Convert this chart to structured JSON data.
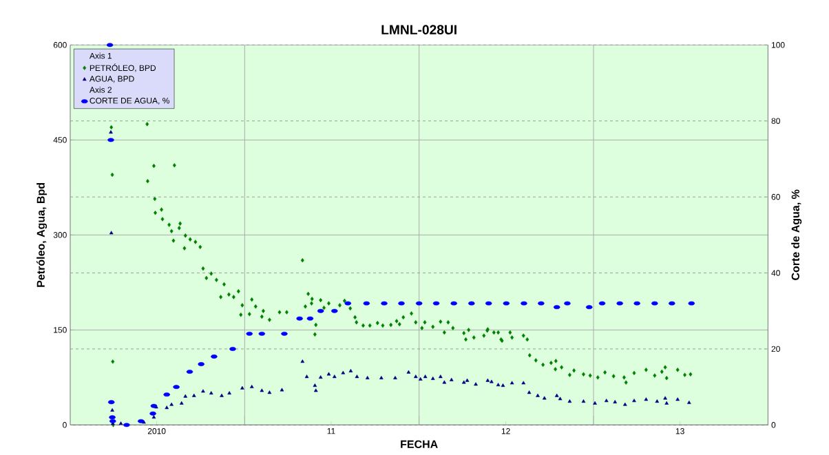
{
  "chart_data": {
    "type": "scatter",
    "title": "LMNL-028UI",
    "xlabel": "FECHA",
    "ylabel": "Petróleo, Agua, Bpd",
    "y2label": "Corte de Agua, %",
    "annotations": [
      "Axis 1",
      "Axis 2"
    ],
    "xlim": [
      "2010-01-01",
      "2014-01-01"
    ],
    "xticks": [
      {
        "value": "2010-07-01",
        "label": "2010"
      },
      {
        "value": "2011-01-01",
        "label": null
      },
      {
        "value": "2011-07-01",
        "label": "11"
      },
      {
        "value": "2012-01-01",
        "label": null
      },
      {
        "value": "2012-07-01",
        "label": "12"
      },
      {
        "value": "2013-01-01",
        "label": null
      },
      {
        "value": "2013-07-01",
        "label": "13"
      }
    ],
    "ylim": [
      0,
      600
    ],
    "yticks": [
      0,
      150,
      300,
      450,
      600
    ],
    "y2lim": [
      0,
      100
    ],
    "y2ticks": [
      0,
      20,
      40,
      60,
      80,
      100
    ],
    "grid": true,
    "legend": "top left",
    "series": [
      {
        "name": "PETRÓLEO, BPD",
        "color": "#008000",
        "marker": "diamond",
        "axis": "y",
        "x": [
          "2010-03-28",
          "2010-03-30",
          "2010-03-31",
          "2010-04-01",
          "2010-06-11",
          "2010-06-12",
          "2010-06-25",
          "2010-06-27",
          "2010-06-28",
          "2010-07-11",
          "2010-07-13",
          "2010-07-27",
          "2010-08-01",
          "2010-08-05",
          "2010-08-07",
          "2010-08-17",
          "2010-08-19",
          "2010-08-28",
          "2010-08-30",
          "2010-09-09",
          "2010-09-20",
          "2010-09-30",
          "2010-10-06",
          "2010-10-13",
          "2010-10-23",
          "2010-11-03",
          "2010-11-12",
          "2010-11-19",
          "2010-11-29",
          "2010-12-09",
          "2010-12-19",
          "2010-12-24",
          "2010-12-27",
          "2011-01-11",
          "2011-01-16",
          "2011-01-24",
          "2011-02-06",
          "2011-02-09",
          "2011-02-22",
          "2011-03-15",
          "2011-03-30",
          "2011-05-02",
          "2011-05-08",
          "2011-05-14",
          "2011-05-21",
          "2011-05-22",
          "2011-05-28",
          "2011-05-30",
          "2011-06-09",
          "2011-06-16",
          "2011-06-26",
          "2011-07-19",
          "2011-07-29",
          "2011-08-10",
          "2011-08-20",
          "2011-08-23",
          "2011-09-06",
          "2011-09-20",
          "2011-10-06",
          "2011-10-17",
          "2011-11-03",
          "2011-11-15",
          "2011-11-21",
          "2011-11-29",
          "2011-12-16",
          "2011-12-25",
          "2012-01-07",
          "2012-01-13",
          "2012-01-30",
          "2012-02-15",
          "2012-02-23",
          "2012-03-02",
          "2012-03-12",
          "2012-04-04",
          "2012-04-08",
          "2012-04-14",
          "2012-04-25",
          "2012-05-16",
          "2012-05-23",
          "2012-05-24",
          "2012-06-06",
          "2012-06-15",
          "2012-06-21",
          "2012-06-23",
          "2012-07-10",
          "2012-07-14",
          "2012-08-07",
          "2012-08-15",
          "2012-08-20",
          "2012-09-02",
          "2012-09-17",
          "2012-10-04",
          "2012-10-13",
          "2012-10-14",
          "2012-10-26",
          "2012-11-12",
          "2012-11-21",
          "2012-12-11",
          "2012-12-25",
          "2013-01-10",
          "2013-01-25",
          "2013-02-12",
          "2013-03-06",
          "2013-03-10",
          "2013-03-27",
          "2013-04-21",
          "2013-05-09",
          "2013-05-24",
          "2013-05-31",
          "2013-06-03",
          "2013-06-26",
          "2013-07-11",
          "2013-07-23"
        ],
        "values": [
          470,
          395,
          100,
          0,
          475,
          385,
          409,
          357,
          335,
          340,
          325,
          316,
          306,
          291,
          410,
          311,
          318,
          279,
          299,
          293,
          289,
          281,
          247,
          232,
          239,
          229,
          202,
          222,
          206,
          202,
          211,
          174,
          189,
          175,
          198,
          187,
          171,
          180,
          166,
          178,
          178,
          260,
          187,
          207,
          192,
          199,
          143,
          158,
          197,
          185,
          192,
          189,
          196,
          184,
          170,
          162,
          157,
          157,
          161,
          157,
          158,
          164,
          159,
          170,
          176,
          162,
          153,
          162,
          155,
          163,
          146,
          162,
          153,
          145,
          135,
          150,
          138,
          141,
          149,
          151,
          146,
          146,
          135,
          133,
          146,
          138,
          141,
          135,
          110,
          102,
          95,
          98,
          88,
          101,
          91,
          79,
          86,
          80,
          78,
          75,
          83,
          77,
          75,
          67,
          82,
          87,
          78,
          84,
          91,
          74,
          87,
          79,
          80
        ]
      },
      {
        "name": "AGUA, BPD",
        "color": "#000080",
        "marker": "triangle",
        "axis": "y",
        "x": [
          "2010-03-27",
          "2010-03-28",
          "2010-03-30",
          "2010-03-31",
          "2010-04-17",
          "2010-06-04",
          "2010-06-25",
          "2010-06-30",
          "2010-07-22",
          "2010-08-01",
          "2010-08-22",
          "2010-08-30",
          "2010-09-17",
          "2010-10-06",
          "2010-10-23",
          "2010-11-14",
          "2010-11-30",
          "2010-12-27",
          "2011-01-16",
          "2011-02-06",
          "2011-02-22",
          "2011-03-20",
          "2011-05-02",
          "2011-05-11",
          "2011-05-28",
          "2011-05-30",
          "2011-06-09",
          "2011-06-26",
          "2011-07-08",
          "2011-07-26",
          "2011-08-11",
          "2011-08-24",
          "2011-09-15",
          "2011-10-14",
          "2011-11-12",
          "2011-12-10",
          "2011-12-25",
          "2012-01-04",
          "2012-01-14",
          "2012-01-30",
          "2012-02-15",
          "2012-02-23",
          "2012-03-09",
          "2012-04-04",
          "2012-04-11",
          "2012-04-29",
          "2012-05-24",
          "2012-06-01",
          "2012-06-15",
          "2012-06-25",
          "2012-07-14",
          "2012-08-07",
          "2012-08-19",
          "2012-09-06",
          "2012-09-20",
          "2012-10-16",
          "2012-10-23",
          "2012-11-12",
          "2012-12-11",
          "2013-01-04",
          "2013-01-28",
          "2013-02-15",
          "2013-03-08",
          "2013-03-27",
          "2013-04-21",
          "2013-05-14",
          "2013-05-31",
          "2013-06-03",
          "2013-06-26",
          "2013-07-20"
        ],
        "values": [
          462,
          303,
          23,
          2,
          2,
          4,
          12,
          28,
          27,
          32,
          34,
          45,
          46,
          53,
          50,
          46,
          50,
          58,
          60,
          54,
          51,
          55,
          100,
          76,
          62,
          54,
          75,
          80,
          76,
          82,
          85,
          76,
          74,
          74,
          74,
          83,
          76,
          72,
          76,
          73,
          76,
          67,
          71,
          67,
          70,
          64,
          70,
          68,
          63,
          62,
          66,
          66,
          51,
          46,
          42,
          46,
          41,
          37,
          37,
          34,
          38,
          36,
          32,
          38,
          40,
          37,
          42,
          34,
          40,
          35
        ]
      },
      {
        "name": "CORTE DE AGUA, %",
        "color": "#0000ff",
        "marker": "circle",
        "axis": "y2",
        "x": [
          "2010-03-25",
          "2010-03-27",
          "2010-03-28",
          "2010-03-30",
          "2010-03-31",
          "2010-04-29",
          "2010-05-29",
          "2010-06-23",
          "2010-06-25",
          "2010-07-22",
          "2010-08-11",
          "2010-09-08",
          "2010-10-02",
          "2010-10-29",
          "2010-12-07",
          "2011-01-11",
          "2011-02-06",
          "2011-03-25",
          "2011-04-26",
          "2011-05-18",
          "2011-06-09",
          "2011-07-08",
          "2011-08-05",
          "2011-09-13",
          "2011-10-20",
          "2011-11-25",
          "2012-01-01",
          "2012-02-06",
          "2012-03-14",
          "2012-04-20",
          "2012-05-26",
          "2012-07-02",
          "2012-08-08",
          "2012-09-13",
          "2012-10-16",
          "2012-11-07",
          "2012-12-23",
          "2013-01-19",
          "2013-02-25",
          "2013-04-02",
          "2013-05-09",
          "2013-06-14",
          "2013-07-25"
        ],
        "values": [
          100,
          75,
          6,
          2,
          1,
          0,
          1,
          3,
          5,
          8,
          10,
          14,
          16,
          18,
          20,
          24,
          24,
          24,
          28,
          28,
          30,
          30,
          32,
          32,
          32,
          32,
          32,
          32,
          32,
          32,
          32,
          32,
          32,
          32,
          31,
          32,
          31,
          32,
          32,
          32,
          32,
          32,
          32
        ]
      }
    ]
  }
}
